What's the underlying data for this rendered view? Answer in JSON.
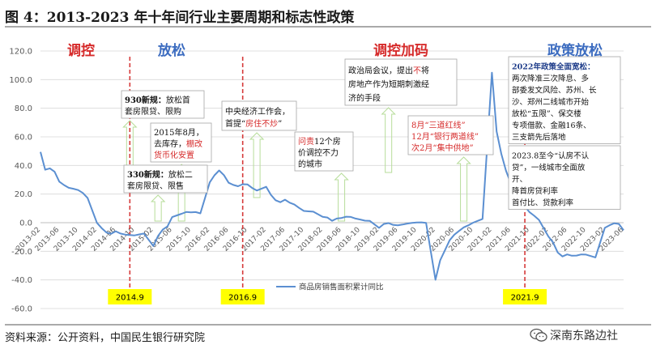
{
  "figure": {
    "heading": "图 4：2013-2023 年十年间行业主要周期和标志性政策",
    "source": "资料来源：公开资料，中国民生银行研究院",
    "watermark": "深南东路边社"
  },
  "colors": {
    "line": "#5b8fd1",
    "phase_red": "#d62b2b",
    "phase_blue": "#3c6cc0",
    "divider": "#d63a3a",
    "arrow": "#b7dd9a",
    "year_box": "#ffff00",
    "box_border": "#a6a6a6"
  },
  "chart_data": {
    "type": "line",
    "title": "",
    "xlabel": "",
    "ylabel": "",
    "ylim": [
      -60,
      120
    ],
    "yticks": [
      -60,
      -40,
      -20,
      0,
      20,
      40,
      60,
      80,
      100,
      120
    ],
    "ytick_labels": [
      "-60.0",
      "-40.0",
      "-20.0",
      "0.0",
      "20.0",
      "40.0",
      "60.0",
      "80.0",
      "100.0",
      "120.0"
    ],
    "xticks": [
      "2013-02",
      "2013-06",
      "2013-10",
      "2014-02",
      "2014-06",
      "2014-10",
      "2015-02",
      "2015-06",
      "2015-10",
      "2016-02",
      "2016-06",
      "2016-10",
      "2017-02",
      "2017-06",
      "2017-10",
      "2018-02",
      "2018-06",
      "2018-10",
      "2019-02",
      "2019-06",
      "2019-10",
      "2020-02",
      "2020-06",
      "2020-10",
      "2021-02",
      "2021-06",
      "2021-10",
      "2022-02",
      "2022-06",
      "2022-10",
      "2023-02",
      "2023-06"
    ],
    "legend": {
      "entry": "商品房销售面积累计同比",
      "position": "bottom-center"
    },
    "series": [
      {
        "name": "商品房销售面积累计同比",
        "points": [
          [
            "2013-02",
            49.5
          ],
          [
            "2013-03",
            37
          ],
          [
            "2013-04",
            38
          ],
          [
            "2013-05",
            35.6
          ],
          [
            "2013-06",
            28.7
          ],
          [
            "2013-07",
            26.3
          ],
          [
            "2013-08",
            24.4
          ],
          [
            "2013-09",
            23.7
          ],
          [
            "2013-10",
            22.8
          ],
          [
            "2013-11",
            20.8
          ],
          [
            "2013-12",
            17.3
          ],
          [
            "2014-02",
            -0.1
          ],
          [
            "2014-03",
            -3.8
          ],
          [
            "2014-04",
            -6.8
          ],
          [
            "2014-05",
            -7.8
          ],
          [
            "2014-06",
            -6
          ],
          [
            "2014-07",
            -7.6
          ],
          [
            "2014-08",
            -8.3
          ],
          [
            "2014-09",
            -8.6
          ],
          [
            "2014-10",
            -8.9
          ],
          [
            "2014-11",
            -8.2
          ],
          [
            "2014-12",
            -7.6
          ],
          [
            "2015-02",
            -16.3
          ],
          [
            "2015-03",
            -9.2
          ],
          [
            "2015-04",
            -4.8
          ],
          [
            "2015-05",
            -2.6
          ],
          [
            "2015-06",
            3.9
          ],
          [
            "2015-07",
            5.1
          ],
          [
            "2015-08",
            6.2
          ],
          [
            "2015-09",
            7.5
          ],
          [
            "2015-10",
            7.2
          ],
          [
            "2015-11",
            7.4
          ],
          [
            "2015-12",
            6.5
          ],
          [
            "2016-02",
            28.2
          ],
          [
            "2016-03",
            33.1
          ],
          [
            "2016-04",
            36.5
          ],
          [
            "2016-05",
            33.2
          ],
          [
            "2016-06",
            27.9
          ],
          [
            "2016-07",
            26.4
          ],
          [
            "2016-08",
            25.5
          ],
          [
            "2016-09",
            26.9
          ],
          [
            "2016-10",
            26.8
          ],
          [
            "2016-11",
            24.3
          ],
          [
            "2016-12",
            22.5
          ],
          [
            "2017-02",
            25.1
          ],
          [
            "2017-03",
            19.5
          ],
          [
            "2017-04",
            15.7
          ],
          [
            "2017-05",
            14.3
          ],
          [
            "2017-06",
            16.1
          ],
          [
            "2017-07",
            14
          ],
          [
            "2017-08",
            12.7
          ],
          [
            "2017-09",
            10.3
          ],
          [
            "2017-10",
            8.2
          ],
          [
            "2017-11",
            7.9
          ],
          [
            "2017-12",
            7.7
          ],
          [
            "2018-02",
            4.1
          ],
          [
            "2018-03",
            3.6
          ],
          [
            "2018-04",
            1.3
          ],
          [
            "2018-05",
            2.9
          ],
          [
            "2018-06",
            3.3
          ],
          [
            "2018-07",
            4.2
          ],
          [
            "2018-08",
            4
          ],
          [
            "2018-09",
            2.9
          ],
          [
            "2018-10",
            2.2
          ],
          [
            "2018-11",
            1.4
          ],
          [
            "2018-12",
            1.3
          ],
          [
            "2019-02",
            -3.6
          ],
          [
            "2019-03",
            -0.9
          ],
          [
            "2019-04",
            -0.3
          ],
          [
            "2019-05",
            -1.6
          ],
          [
            "2019-06",
            -1.8
          ],
          [
            "2019-07",
            -1.3
          ],
          [
            "2019-08",
            -0.6
          ],
          [
            "2019-09",
            -0.1
          ],
          [
            "2019-10",
            0.1
          ],
          [
            "2019-11",
            0.2
          ],
          [
            "2019-12",
            -0.1
          ],
          [
            "2020-02",
            -39.9
          ],
          [
            "2020-03",
            -26.3
          ],
          [
            "2020-04",
            -19.3
          ],
          [
            "2020-05",
            -12.3
          ],
          [
            "2020-06",
            -8.4
          ],
          [
            "2020-07",
            -5.8
          ],
          [
            "2020-08",
            -3.3
          ],
          [
            "2020-09",
            -1.8
          ],
          [
            "2020-10",
            0
          ],
          [
            "2020-11",
            1.3
          ],
          [
            "2020-12",
            2.6
          ],
          [
            "2021-02",
            104.9
          ],
          [
            "2021-03",
            63.8
          ],
          [
            "2021-04",
            48.1
          ],
          [
            "2021-05",
            36.3
          ],
          [
            "2021-06",
            27.7
          ],
          [
            "2021-07",
            21.5
          ],
          [
            "2021-08",
            15.9
          ],
          [
            "2021-09",
            11.3
          ],
          [
            "2021-10",
            7.3
          ],
          [
            "2021-11",
            4.8
          ],
          [
            "2021-12",
            1.9
          ],
          [
            "2022-02",
            -9.6
          ],
          [
            "2022-03",
            -13.8
          ],
          [
            "2022-04",
            -20.9
          ],
          [
            "2022-05",
            -23.6
          ],
          [
            "2022-06",
            -22.2
          ],
          [
            "2022-07",
            -23.1
          ],
          [
            "2022-08",
            -23
          ],
          [
            "2022-09",
            -22.2
          ],
          [
            "2022-10",
            -22.3
          ],
          [
            "2022-11",
            -23.3
          ],
          [
            "2022-12",
            -24.3
          ],
          [
            "2023-02",
            -3.6
          ],
          [
            "2023-03",
            -1.8
          ],
          [
            "2023-04",
            -0.4
          ],
          [
            "2023-05",
            -0.9
          ],
          [
            "2023-06",
            -5.3
          ]
        ]
      }
    ],
    "phases": [
      {
        "label": "调控",
        "at": "2013-09",
        "color": "red"
      },
      {
        "label": "放松",
        "at": "2015-01",
        "color": "blue"
      },
      {
        "label": "调控加码",
        "at": "2019-06",
        "color": "red"
      },
      {
        "label": "政策放松",
        "at": "2022-07",
        "color": "blue"
      }
    ],
    "dividers": [
      {
        "at": "2014-09",
        "label": "2014.9"
      },
      {
        "at": "2016-09",
        "label": "2016.9"
      },
      {
        "at": "2021-09",
        "label": "2021.9"
      }
    ],
    "annotations": [
      {
        "id": "a930",
        "at": "2014-09",
        "lines": [
          [
            [
              "930新规：",
              "b"
            ],
            [
              "放松首",
              "n"
            ]
          ],
          [
            [
              "套房限贷、限购",
              "n"
            ]
          ]
        ]
      },
      {
        "id": "a2015",
        "at": "2015-08",
        "lines": [
          [
            [
              "2015年8月，",
              "n"
            ]
          ],
          [
            [
              "去库存，",
              "n"
            ],
            [
              "棚改",
              "r"
            ]
          ],
          [
            [
              "货币化安置",
              "r"
            ]
          ]
        ]
      },
      {
        "id": "a330",
        "at": "2015-03",
        "lines": [
          [
            [
              "330新规：",
              "b"
            ],
            [
              "放松二",
              "n"
            ]
          ],
          [
            [
              "套房限贷、限售",
              "n"
            ]
          ]
        ]
      },
      {
        "id": "aconf",
        "at": "2016-12",
        "lines": [
          [
            [
              "中央经济工作会，",
              "n"
            ]
          ],
          [
            [
              "首提“",
              "n"
            ],
            [
              "房住不炒",
              "r"
            ],
            [
              "”",
              "n"
            ]
          ]
        ]
      },
      {
        "id": "ainterview",
        "at": "2018-06",
        "lines": [
          [
            [
              "问责",
              "r"
            ],
            [
              "12个房",
              "n"
            ]
          ],
          [
            [
              "价调控不力",
              "n"
            ]
          ],
          [
            [
              "的城市",
              "n"
            ]
          ]
        ]
      },
      {
        "id": "apolit",
        "at": "2019-04",
        "lines": [
          [
            [
              "政治局会议，提出",
              "n"
            ],
            [
              "不",
              "r"
            ],
            [
              "将",
              "n"
            ]
          ],
          [
            [
              "房地产作为短期刺激经",
              "n"
            ]
          ],
          [
            [
              "济的手段",
              "n"
            ]
          ]
        ]
      },
      {
        "id": "athree",
        "at": "2020-08",
        "lines": [
          [
            [
              "8月“",
              "r"
            ],
            [
              "三道红线",
              "r"
            ],
            [
              "”",
              "r"
            ]
          ],
          [
            [
              "12月“",
              "r"
            ],
            [
              "银行两道线",
              "r"
            ],
            [
              "”",
              "r"
            ]
          ],
          [
            [
              "次2月“",
              "r"
            ],
            [
              "集中供地",
              "r"
            ],
            [
              "”",
              "r"
            ]
          ]
        ]
      },
      {
        "id": "a2022",
        "at": "2022-07",
        "lines": [
          [
            [
              "2022年政策全面宽松：",
              "b"
            ]
          ],
          [
            [
              "两次降准三次降息、多",
              "n"
            ]
          ],
          [
            [
              "部委发文风险、苏州、长",
              "n"
            ]
          ],
          [
            [
              "沙、郑州二线城市开始",
              "n"
            ]
          ],
          [
            [
              "放松“五限”、保交楼",
              "n"
            ]
          ],
          [
            [
              "专项借款、金融16条、",
              "n"
            ]
          ],
          [
            [
              "三支箭先后落地",
              "n"
            ]
          ]
        ]
      },
      {
        "id": "a2023",
        "at": "2023-04",
        "lines": [
          [
            [
              "2023.8至今“认房不认",
              "n"
            ]
          ],
          [
            [
              "贷”，一线城市全面放",
              "n"
            ]
          ],
          [
            [
              "开、",
              "n"
            ]
          ],
          [
            [
              "降首房贷利率",
              "n"
            ]
          ],
          [
            [
              "首付比、贷款利率",
              "n"
            ]
          ]
        ]
      }
    ]
  }
}
